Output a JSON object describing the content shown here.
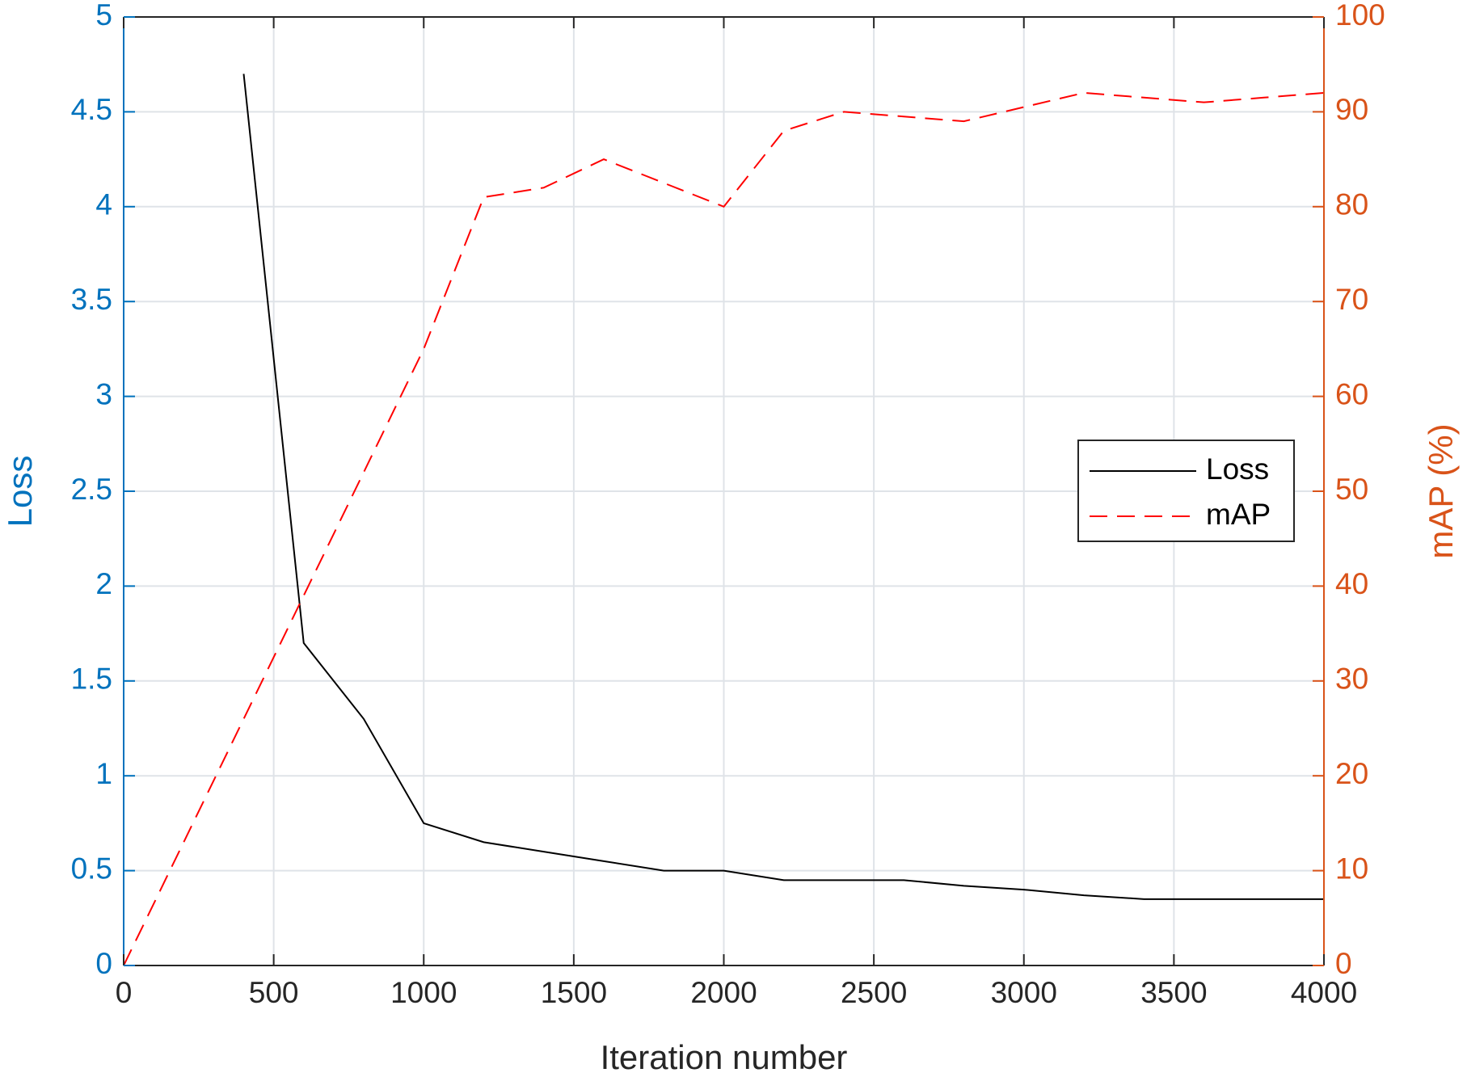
{
  "chart_data": {
    "type": "line",
    "xlabel": "Iteration number",
    "ylabel": "Loss",
    "y2label": "mAP (%)",
    "xlim": [
      0,
      4000
    ],
    "xticks": [
      0,
      500,
      1000,
      1500,
      2000,
      2500,
      3000,
      3500,
      4000
    ],
    "ylim": [
      0,
      5
    ],
    "yticks": [
      0,
      0.5,
      1,
      1.5,
      2,
      2.5,
      3,
      3.5,
      4,
      4.5,
      5
    ],
    "y2lim": [
      0,
      100
    ],
    "y2ticks": [
      0,
      10,
      20,
      30,
      40,
      50,
      60,
      70,
      80,
      90,
      100
    ],
    "y_axis_color": "#0072bd",
    "y2_axis_color": "#d95319",
    "grid": true,
    "legend": "right",
    "series": [
      {
        "name": "Loss",
        "color": "#000000",
        "dash": "solid",
        "axis": "y",
        "x": [
          400,
          600,
          800,
          1000,
          1200,
          1400,
          1600,
          1800,
          2000,
          2200,
          2400,
          2600,
          2800,
          3000,
          3200,
          3400,
          3600,
          3800,
          4000
        ],
        "values": [
          4.7,
          1.7,
          1.3,
          0.75,
          0.65,
          0.6,
          0.55,
          0.5,
          0.5,
          0.45,
          0.45,
          0.45,
          0.42,
          0.4,
          0.37,
          0.35,
          0.35,
          0.35,
          0.35
        ]
      },
      {
        "name": "mAP",
        "color": "#ff0000",
        "dash": "dashed",
        "axis": "y2",
        "x": [
          0,
          1000,
          1200,
          1400,
          1600,
          1800,
          2000,
          2200,
          2400,
          2600,
          2800,
          3000,
          3200,
          3400,
          3600,
          3800,
          4000
        ],
        "values": [
          0,
          65,
          81,
          82,
          85,
          82.5,
          80,
          88,
          90,
          89.5,
          89,
          90.5,
          92,
          91.5,
          91,
          91.5,
          92
        ]
      }
    ]
  }
}
